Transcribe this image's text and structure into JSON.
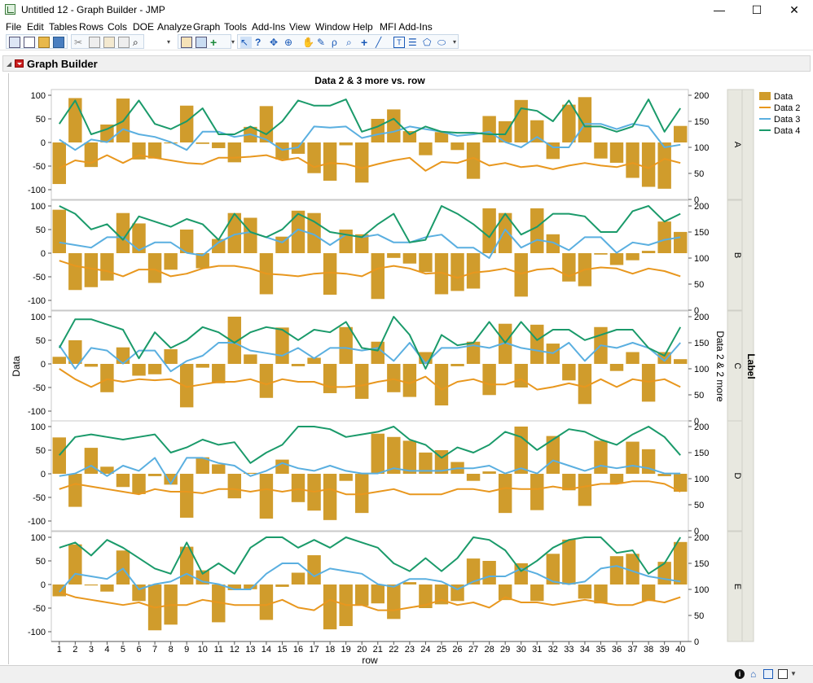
{
  "window": {
    "title": "Untitled 12 - Graph Builder - JMP",
    "minimize_glyph": "—",
    "maximize_glyph": "☐",
    "close_glyph": "✕"
  },
  "menu": [
    "File",
    "Edit",
    "Tables",
    "Rows",
    "Cols",
    "DOE",
    "Analyze",
    "Graph",
    "Tools",
    "Add-Ins",
    "View",
    "Window",
    "Help",
    "MFI Add-Ins"
  ],
  "toolbar": {
    "icons": [
      "new-data-table-icon",
      "new-script-icon",
      "open-icon",
      "open-folder-icon",
      "save-icon",
      "cut-icon",
      "copy-icon",
      "paste-icon",
      "paste-special-icon",
      "search-icon",
      "data-table-icon",
      "graph-builder-icon",
      "add-column-icon",
      "arrow-tool-icon",
      "help-tool-icon",
      "selection-tool-icon",
      "crosshair-tool-icon",
      "hand-tool-icon",
      "brush-tool-icon",
      "lasso-tool-icon",
      "magnifier-tool-icon",
      "plus-tool-icon",
      "line-tool-icon",
      "text-annotate-icon",
      "note-icon",
      "polygon-icon",
      "simple-shape-icon"
    ]
  },
  "outline": {
    "title": "Graph Builder"
  },
  "status_icons": [
    "info-icon",
    "home-icon",
    "window-list-icon"
  ],
  "chart_data": {
    "type": "bar",
    "title": "Data 2 & 3 more vs. row",
    "xlabel": "row",
    "ylabel": "Data",
    "ylabel_right": "Data 2 & 2 more",
    "group_label": "Label",
    "groups": [
      "A",
      "B",
      "C",
      "D",
      "E"
    ],
    "x": [
      1,
      2,
      3,
      4,
      5,
      6,
      7,
      8,
      9,
      10,
      11,
      12,
      13,
      14,
      15,
      16,
      17,
      18,
      19,
      20,
      21,
      22,
      23,
      24,
      25,
      26,
      27,
      28,
      29,
      30,
      31,
      32,
      33,
      34,
      35,
      36,
      37,
      38,
      39,
      40
    ],
    "left_ylim": [
      -100,
      100
    ],
    "left_ticks": [
      100,
      50,
      0,
      -50,
      -100
    ],
    "right_ylim": [
      0,
      200
    ],
    "right_ticks": [
      200,
      150,
      100,
      50,
      0
    ],
    "legend": [
      {
        "name": "Data",
        "kind": "bar",
        "color": "#d09c2c"
      },
      {
        "name": "Data 2",
        "kind": "line",
        "color": "#e8971e"
      },
      {
        "name": "Data 3",
        "kind": "line",
        "color": "#5aafe0"
      },
      {
        "name": "Data 4",
        "kind": "line",
        "color": "#1a9a6a"
      }
    ],
    "legend_position": "right",
    "grid": false,
    "panels": [
      {
        "group": "A",
        "bars": [
          -88,
          94,
          -52,
          38,
          93,
          -36,
          -34,
          -2,
          78,
          -3,
          -12,
          -42,
          33,
          77,
          -36,
          -24,
          -65,
          -81,
          -6,
          -85,
          50,
          70,
          24,
          -27,
          22,
          -16,
          -77,
          56,
          45,
          90,
          47,
          -35,
          80,
          96,
          -34,
          -43,
          -75,
          -94,
          -98,
          35
        ],
        "data2": [
          60,
          75,
          70,
          85,
          70,
          85,
          80,
          75,
          70,
          68,
          80,
          80,
          82,
          85,
          75,
          80,
          62,
          70,
          68,
          60,
          68,
          75,
          80,
          55,
          72,
          70,
          80,
          65,
          70,
          62,
          65,
          58,
          65,
          70,
          65,
          62,
          70,
          60,
          78,
          70
        ],
        "data3": [
          115,
          95,
          115,
          110,
          135,
          125,
          120,
          110,
          95,
          130,
          130,
          120,
          125,
          115,
          95,
          100,
          140,
          138,
          140,
          118,
          125,
          130,
          140,
          135,
          130,
          122,
          125,
          130,
          110,
          100,
          120,
          100,
          100,
          145,
          145,
          135,
          145,
          140,
          100,
          105
        ],
        "data4": [
          145,
          190,
          125,
          135,
          150,
          190,
          145,
          135,
          150,
          175,
          125,
          125,
          140,
          125,
          150,
          190,
          180,
          180,
          192,
          130,
          140,
          155,
          125,
          140,
          130,
          128,
          128,
          125,
          125,
          175,
          170,
          150,
          190,
          140,
          140,
          130,
          140,
          192,
          130,
          175
        ]
      },
      {
        "group": "B",
        "bars": [
          92,
          -78,
          -72,
          -58,
          85,
          63,
          -63,
          -35,
          50,
          -32,
          30,
          85,
          75,
          -87,
          35,
          90,
          85,
          -88,
          50,
          40,
          -97,
          -10,
          -22,
          -40,
          -87,
          -80,
          -75,
          95,
          85,
          -92,
          95,
          40,
          -60,
          -70,
          -3,
          -25,
          -15,
          5,
          67,
          45
        ],
        "data2": [
          95,
          85,
          80,
          75,
          65,
          78,
          78,
          65,
          70,
          80,
          85,
          85,
          80,
          70,
          68,
          65,
          70,
          72,
          70,
          65,
          80,
          85,
          80,
          70,
          72,
          62,
          72,
          75,
          80,
          70,
          78,
          80,
          65,
          78,
          82,
          80,
          70,
          80,
          75,
          65
        ],
        "data3": [
          130,
          125,
          120,
          140,
          140,
          115,
          130,
          130,
          110,
          105,
          130,
          145,
          150,
          140,
          130,
          155,
          145,
          125,
          145,
          140,
          145,
          130,
          130,
          140,
          145,
          120,
          120,
          100,
          155,
          120,
          135,
          130,
          115,
          140,
          140,
          110,
          130,
          125,
          135,
          140
        ],
        "data4": [
          200,
          185,
          155,
          165,
          135,
          180,
          170,
          160,
          175,
          165,
          135,
          185,
          150,
          140,
          155,
          185,
          170,
          150,
          145,
          140,
          165,
          185,
          130,
          135,
          200,
          185,
          165,
          140,
          185,
          145,
          160,
          185,
          185,
          180,
          150,
          150,
          190,
          200,
          170,
          185
        ]
      },
      {
        "group": "C",
        "bars": [
          15,
          50,
          -6,
          -60,
          35,
          -25,
          -22,
          31,
          -92,
          -8,
          -41,
          100,
          20,
          -72,
          77,
          -5,
          13,
          -62,
          78,
          -74,
          47,
          -60,
          -70,
          25,
          -88,
          -5,
          47,
          -66,
          85,
          -50,
          83,
          43,
          -35,
          -85,
          78,
          -15,
          25,
          -80,
          25,
          10
        ],
        "data2": [
          100,
          80,
          65,
          80,
          75,
          80,
          78,
          80,
          65,
          70,
          75,
          75,
          80,
          70,
          80,
          75,
          75,
          65,
          65,
          68,
          75,
          80,
          72,
          85,
          60,
          75,
          80,
          70,
          70,
          80,
          60,
          65,
          72,
          65,
          80,
          65,
          80,
          75,
          80,
          65
        ],
        "data3": [
          145,
          100,
          140,
          135,
          110,
          135,
          135,
          95,
          115,
          125,
          150,
          150,
          135,
          130,
          125,
          140,
          120,
          140,
          140,
          135,
          140,
          115,
          150,
          110,
          140,
          140,
          145,
          140,
          150,
          140,
          135,
          130,
          150,
          115,
          145,
          140,
          150,
          140,
          115,
          150
        ],
        "data4": [
          140,
          195,
          195,
          185,
          175,
          120,
          170,
          140,
          155,
          180,
          170,
          150,
          170,
          180,
          175,
          155,
          175,
          170,
          190,
          140,
          135,
          200,
          165,
          100,
          165,
          145,
          150,
          190,
          150,
          190,
          155,
          175,
          175,
          155,
          165,
          175,
          175,
          140,
          125,
          180
        ]
      },
      {
        "group": "D",
        "bars": [
          77,
          -70,
          55,
          15,
          -28,
          -43,
          -5,
          -23,
          -93,
          35,
          20,
          -52,
          2,
          -95,
          30,
          -60,
          -78,
          -98,
          -15,
          -83,
          85,
          78,
          70,
          45,
          50,
          25,
          -15,
          5,
          -83,
          100,
          -77,
          80,
          -35,
          -68,
          70,
          -20,
          68,
          52,
          -5,
          -38
        ],
        "data2": [
          80,
          90,
          85,
          80,
          75,
          70,
          80,
          75,
          75,
          72,
          80,
          80,
          75,
          80,
          75,
          80,
          75,
          80,
          70,
          70,
          75,
          80,
          70,
          70,
          70,
          80,
          80,
          75,
          82,
          80,
          80,
          85,
          80,
          85,
          90,
          90,
          95,
          95,
          90,
          75
        ],
        "data3": [
          105,
          110,
          125,
          105,
          125,
          115,
          140,
          90,
          140,
          140,
          130,
          125,
          105,
          115,
          130,
          120,
          115,
          125,
          115,
          110,
          110,
          120,
          115,
          115,
          115,
          120,
          120,
          125,
          110,
          120,
          110,
          135,
          125,
          115,
          125,
          120,
          125,
          120,
          110,
          110
        ],
        "data4": [
          145,
          180,
          185,
          180,
          175,
          180,
          185,
          150,
          160,
          175,
          165,
          170,
          130,
          150,
          165,
          200,
          200,
          195,
          180,
          185,
          190,
          200,
          175,
          165,
          140,
          160,
          150,
          165,
          190,
          180,
          155,
          175,
          195,
          190,
          175,
          165,
          185,
          200,
          180,
          145
        ]
      },
      {
        "group": "E",
        "bars": [
          -25,
          85,
          -2,
          -15,
          72,
          -35,
          -97,
          -85,
          80,
          30,
          -80,
          -12,
          -10,
          -75,
          -5,
          25,
          62,
          -95,
          -88,
          -45,
          -40,
          -73,
          5,
          -50,
          -42,
          -35,
          55,
          50,
          -33,
          45,
          -35,
          65,
          95,
          -30,
          -40,
          60,
          65,
          -35,
          48,
          90
        ],
        "data2": [
          95,
          85,
          80,
          75,
          70,
          75,
          65,
          70,
          70,
          80,
          75,
          70,
          70,
          70,
          80,
          65,
          60,
          80,
          70,
          70,
          60,
          60,
          65,
          70,
          80,
          70,
          75,
          65,
          85,
          75,
          75,
          70,
          75,
          80,
          75,
          70,
          70,
          80,
          75,
          85
        ],
        "data3": [
          95,
          130,
          125,
          120,
          140,
          100,
          110,
          115,
          130,
          115,
          110,
          100,
          100,
          130,
          150,
          150,
          125,
          140,
          135,
          130,
          110,
          105,
          120,
          120,
          115,
          100,
          115,
          125,
          125,
          140,
          130,
          115,
          110,
          115,
          140,
          145,
          135,
          125,
          120,
          115
        ],
        "data4": [
          180,
          190,
          165,
          195,
          180,
          160,
          140,
          130,
          190,
          130,
          150,
          130,
          180,
          200,
          200,
          180,
          195,
          180,
          200,
          190,
          180,
          150,
          135,
          160,
          135,
          160,
          200,
          195,
          175,
          135,
          155,
          180,
          195,
          200,
          200,
          170,
          175,
          130,
          150,
          200
        ]
      }
    ]
  }
}
